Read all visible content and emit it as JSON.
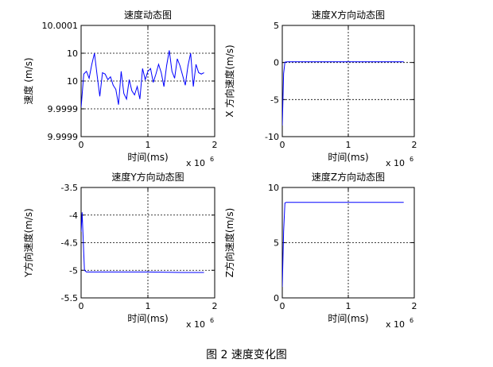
{
  "caption": "图 2  速度变化图",
  "chart_data": [
    {
      "type": "line",
      "title": "速度动态图",
      "xlabel": "时间(ms)",
      "ylabel": "速度 (m/s)",
      "x_exponent_label": "x 10",
      "x_exponent": "6",
      "xlim": [
        0,
        2000000
      ],
      "ylim": [
        0,
        4
      ],
      "xticks": [
        0,
        1000000,
        2000000
      ],
      "xtick_labels": [
        "0",
        "1",
        "2"
      ],
      "yticks": [
        0,
        1,
        2,
        3,
        4
      ],
      "ytick_labels": [
        "9.9999",
        "9.9999",
        "10",
        "10",
        "10.0001"
      ],
      "grid": true,
      "color": "#0000ff",
      "x": [
        0,
        40000,
        80000,
        120000,
        160000,
        200000,
        240000,
        280000,
        320000,
        360000,
        400000,
        440000,
        480000,
        520000,
        560000,
        600000,
        640000,
        680000,
        720000,
        760000,
        800000,
        840000,
        880000,
        920000,
        960000,
        1000000,
        1040000,
        1080000,
        1120000,
        1160000,
        1200000,
        1240000,
        1280000,
        1320000,
        1360000,
        1400000,
        1440000,
        1480000,
        1520000,
        1560000,
        1600000,
        1640000,
        1680000,
        1720000,
        1760000,
        1800000,
        1840000
      ],
      "y": [
        1.05,
        2.25,
        2.35,
        2.1,
        2.6,
        3.0,
        2.2,
        1.45,
        2.3,
        2.25,
        2.05,
        2.15,
        1.85,
        1.7,
        1.15,
        2.35,
        1.55,
        1.35,
        2.05,
        1.65,
        1.5,
        1.8,
        1.35,
        2.45,
        2.05,
        2.35,
        2.45,
        1.95,
        2.25,
        2.6,
        2.3,
        1.8,
        2.55,
        3.1,
        2.35,
        2.1,
        2.8,
        2.55,
        2.2,
        1.85,
        2.55,
        3.0,
        1.8,
        2.6,
        2.3,
        2.25,
        2.3
      ]
    },
    {
      "type": "line",
      "title": "速度X方向动态图",
      "xlabel": "时间(ms)",
      "ylabel": "X 方向速度(m/s)",
      "x_exponent_label": "x 10",
      "x_exponent": "6",
      "xlim": [
        0,
        2000000
      ],
      "ylim": [
        -10,
        5
      ],
      "xticks": [
        0,
        1000000,
        2000000
      ],
      "xtick_labels": [
        "0",
        "1",
        "2"
      ],
      "yticks": [
        -10,
        -5,
        0,
        5
      ],
      "ytick_labels": [
        "-10",
        "-5",
        "0",
        "5"
      ],
      "grid": true,
      "color": "#0000ff",
      "x": [
        0,
        20000,
        40000,
        80000,
        500000,
        1000000,
        1500000,
        1840000
      ],
      "y": [
        -8.5,
        -1.5,
        0.05,
        0.1,
        0.1,
        0.1,
        0.1,
        0.1
      ]
    },
    {
      "type": "line",
      "title": "速度Y方向动态图",
      "xlabel": "时间(ms)",
      "ylabel": "Y方向速度(m/s)",
      "x_exponent_label": "x 10",
      "x_exponent": "6",
      "xlim": [
        0,
        2000000
      ],
      "ylim": [
        -5.5,
        -3.5
      ],
      "xticks": [
        0,
        1000000,
        2000000
      ],
      "xtick_labels": [
        "0",
        "1",
        "2"
      ],
      "yticks": [
        -5.5,
        -5,
        -4.5,
        -4,
        -3.5
      ],
      "ytick_labels": [
        "-5.5",
        "-5",
        "-4.5",
        "-4",
        "-3.5"
      ],
      "grid": true,
      "color": "#0000ff",
      "x": [
        0,
        15000,
        30000,
        50000,
        80000,
        500000,
        1000000,
        1500000,
        1840000
      ],
      "y": [
        -4.3,
        -3.95,
        -4.4,
        -5.0,
        -5.03,
        -5.03,
        -5.03,
        -5.04,
        -5.04
      ]
    },
    {
      "type": "line",
      "title": "速度Z方向动态图",
      "xlabel": "时间(ms)",
      "ylabel": "Z方向速度(m/s)",
      "x_exponent_label": "x 10",
      "x_exponent": "6",
      "xlim": [
        0,
        2000000
      ],
      "ylim": [
        0,
        10
      ],
      "xticks": [
        0,
        1000000,
        2000000
      ],
      "xtick_labels": [
        "0",
        "1",
        "2"
      ],
      "yticks": [
        0,
        5,
        10
      ],
      "ytick_labels": [
        "0",
        "5",
        "10"
      ],
      "grid": true,
      "color": "#0000ff",
      "x": [
        0,
        20000,
        40000,
        60000,
        500000,
        1000000,
        1500000,
        1840000
      ],
      "y": [
        1.0,
        6.0,
        8.6,
        8.65,
        8.65,
        8.65,
        8.65,
        8.65
      ]
    }
  ]
}
